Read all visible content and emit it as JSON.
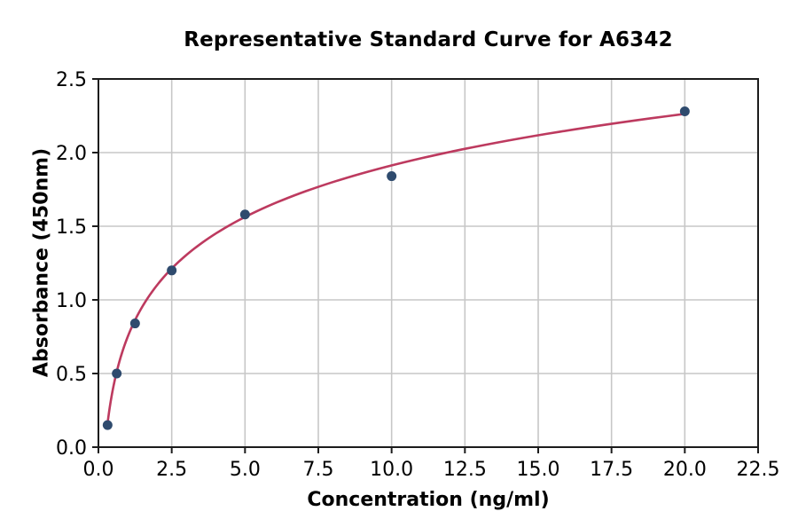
{
  "chart_data": {
    "type": "scatter",
    "title": "Representative Standard Curve for A6342",
    "xlabel": "Concentration (ng/ml)",
    "ylabel": "Absorbance (450nm)",
    "xlim": [
      0,
      22.5
    ],
    "ylim": [
      0,
      2.5
    ],
    "x_ticks": [
      0,
      2.5,
      5,
      7.5,
      10,
      12.5,
      15,
      17.5,
      20,
      22.5
    ],
    "x_tick_labels": [
      "0.0",
      "2.5",
      "5.0",
      "7.5",
      "10.0",
      "12.5",
      "15.0",
      "17.5",
      "20.0",
      "22.5"
    ],
    "y_ticks": [
      0,
      0.5,
      1,
      1.5,
      2,
      2.5
    ],
    "y_tick_labels": [
      "0.0",
      "0.5",
      "1.0",
      "1.5",
      "2.0",
      "2.5"
    ],
    "grid": true,
    "legend": "none",
    "points": {
      "name": "standard-samples",
      "x": [
        0.3125,
        0.625,
        1.25,
        2.5,
        5,
        10,
        20
      ],
      "y": [
        0.15,
        0.5,
        0.84,
        1.2,
        1.58,
        1.84,
        2.28
      ]
    },
    "fit_curve": {
      "name": "fitted-standard-curve",
      "model": "logarithmic",
      "slope": 0.505,
      "intercept": 0.75,
      "x_range": [
        0.3125,
        20
      ]
    },
    "colors": {
      "marker": "#2f4b6e",
      "curve": "#bd3a5f",
      "grid": "#c7c7c7",
      "axis": "#1c1c1c",
      "text": "#000000",
      "background": "#ffffff"
    }
  }
}
